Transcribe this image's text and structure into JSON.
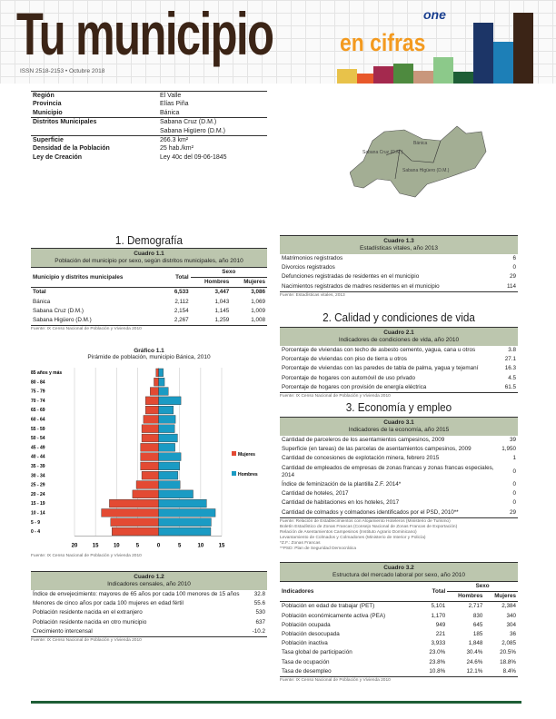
{
  "header": {
    "title": "Tu municipio",
    "subtitle": "en cifras",
    "issn": "ISSN 2518-2153 • Octubre 2018",
    "logo": "one",
    "bar_colors": [
      "#e8c24a",
      "#e8582a",
      "#a4294e",
      "#4e8a3f",
      "#c9977c",
      "#8cc98a",
      "#1e5e36",
      "#1c3567",
      "#1d7fb7",
      "#3b2416"
    ]
  },
  "info": [
    {
      "label": "Región",
      "value": "El Valle"
    },
    {
      "label": "Provincia",
      "value": "Elías Piña"
    },
    {
      "label": "Municipio",
      "value": "Bánica"
    },
    {
      "label": "Distritos Municipales",
      "value": "Sabana Cruz (D.M.)"
    },
    {
      "label": "",
      "value": "Sabana Higüero (D.M.)"
    },
    {
      "label": "Superficie",
      "value": "266.3 km²"
    },
    {
      "label": "Densidad de la Población",
      "value": "25 hab./km²"
    },
    {
      "label": "Ley de Creación",
      "value": "Ley 40c del 09-06-1845"
    }
  ],
  "map": {
    "labels": [
      "Bánica",
      "Sabana Cruz (D.M.)",
      "Sabana Higüero (D.M.)"
    ],
    "fill": "#a3ae94"
  },
  "sections": {
    "s1": "1. Demografía",
    "s2": "2. Calidad y condiciones de vida",
    "s3": "3. Economía y empleo"
  },
  "c11": {
    "num": "Cuadro 1.1",
    "title": "Población del municipio por sexo, según distritos municipales, año 2010",
    "headers": [
      "Municipio y distritos municipales",
      "Total",
      "Sexo",
      "Hombres",
      "Mujeres"
    ],
    "rows": [
      [
        "Total",
        "6,533",
        "3,447",
        "3,086"
      ],
      [
        "Bánica",
        "2,112",
        "1,043",
        "1,069"
      ],
      [
        "Sabana Cruz (D.M.)",
        "2,154",
        "1,145",
        "1,009"
      ],
      [
        "Sabana Higüero (D.M.)",
        "2,267",
        "1,259",
        "1,008"
      ]
    ],
    "source": "Fuente: IX Censo Nacional de Población y Vivienda 2010"
  },
  "chart_data": {
    "type": "bar",
    "orientation": "horizontal-pyramid",
    "number": "Gráfico 1.1",
    "title": "Pirámide de población, municipio Bánica, 2010",
    "categories": [
      "85 años y más",
      "80 - 84",
      "75 - 79",
      "70 - 74",
      "65 - 69",
      "60 - 64",
      "55 - 59",
      "50 - 54",
      "45 - 49",
      "40 - 44",
      "35 - 39",
      "30 - 34",
      "25 - 29",
      "20 - 24",
      "15 - 19",
      "10 - 14",
      "5 - 9",
      "0 - 4"
    ],
    "series": [
      {
        "name": "Mujeres",
        "color": "#e34a33",
        "values": [
          0.6,
          1.1,
          2.0,
          3.1,
          3.1,
          3.6,
          4.0,
          4.0,
          4.3,
          4.3,
          4.3,
          4.0,
          5.3,
          6.2,
          11.7,
          13.6,
          11.4,
          11.1
        ]
      },
      {
        "name": "Hombres",
        "color": "#1a9bc4",
        "values": [
          1.1,
          1.4,
          2.3,
          5.3,
          3.5,
          4.0,
          3.8,
          4.5,
          3.9,
          5.3,
          5.0,
          4.6,
          5.1,
          8.2,
          11.4,
          13.5,
          12.5,
          12.4
        ]
      }
    ],
    "xticks": [
      "20",
      "15",
      "10",
      "5",
      "0",
      "5",
      "10",
      "15"
    ],
    "xlim": [
      -20,
      15
    ],
    "grid": true,
    "legend": "right",
    "source": "Fuente: IX Censo Nacional de Población y Vivienda 2010"
  },
  "c12": {
    "num": "Cuadro 1.2",
    "title": "Indicadores censales, año 2010",
    "rows": [
      [
        "Índice de envejecimiento: mayores de 65 años por cada 100 menores de 15 años",
        "32.8"
      ],
      [
        "Menores de cinco años por cada 100 mujeres en edad fértil",
        "55.6"
      ],
      [
        "Población residente nacida en el extranjero",
        "530"
      ],
      [
        "Población residente nacida en otro municipio",
        "637"
      ],
      [
        "Crecimiento intercensal",
        "-10.2"
      ]
    ],
    "source": "Fuente: IX Censo Nacional de Población y Vivienda 2010"
  },
  "c13": {
    "num": "Cuadro 1.3",
    "title": "Estadísticas vitales, año 2013",
    "rows": [
      [
        "Matrimonios registrados",
        "6"
      ],
      [
        "Divorcios registrados",
        "0"
      ],
      [
        "Defunciones registradas de residentes en el municipio",
        "29"
      ],
      [
        "Nacimientos registrados de madres residentes en el municipio",
        "114"
      ]
    ],
    "source": "Fuente: Estadísticas vitales, 2013"
  },
  "c21": {
    "num": "Cuadro 2.1",
    "title": "Indicadores de condiciones de vida, año 2010",
    "rows": [
      [
        "Porcentaje de viviendas con techo de asbesto cemento, yagua, cana u otros",
        "3.8"
      ],
      [
        "Porcentaje de viviendas con piso de tierra u otros",
        "27.1"
      ],
      [
        "Porcentaje de viviendas con las paredes de tabla de palma, yagua y tejemaní",
        "16.3"
      ],
      [
        "Porcentaje de hogares con automóvil de uso privado",
        "4.5"
      ],
      [
        "Porcentaje de hogares con provisión de energía eléctrica",
        "61.5"
      ]
    ],
    "source": "Fuente: IX Censo Nacional de Población y Vivienda 2010"
  },
  "c31": {
    "num": "Cuadro 3.1",
    "title": "Indicadores de la economía, año 2015",
    "rows": [
      [
        "Cantidad de parceleros de los asentamientos campesinos, 2009",
        "39"
      ],
      [
        "Superficie (en tareas) de las parcelas de asentamientos campesinos, 2009",
        "1,950"
      ],
      [
        "Cantidad de concesiones de explotación minera, febrero 2015",
        "1"
      ],
      [
        "Cantidad de empleados de empresas de zonas francas y zonas francas especiales, 2014",
        "0"
      ],
      [
        "Índice de feminización de la plantilla Z.F. 2014*",
        "0"
      ],
      [
        "Cantidad de hoteles, 2017",
        "0"
      ],
      [
        "Cantidad de habitaciones en los hoteles, 2017",
        "0"
      ],
      [
        "Cantidad de colmados y colmadones identificados por el PSD, 2010**",
        "29"
      ]
    ],
    "notes": [
      "Fuente: Relación de Establecimientos con Alojamiento Hoteleros (Ministerio de Turismo)",
      "Boletín Estadístico de Zonas Francas (Consejo Nacional de Zonas Francas de Exportación)",
      "Relación de Asentamientos Campesinos (Instituto Agrario Dominicano)",
      "Levantamiento de Colmados y Colmadones (Ministerio de Interior y Policía)",
      "*Z.F.: Zonas Francas",
      "**PSD: Plan de Seguridad Democrática"
    ]
  },
  "c32": {
    "num": "Cuadro 3.2",
    "title": "Estructura del mercado laboral por sexo, año 2010",
    "headers": [
      "Indicadores",
      "Total",
      "Sexo",
      "Hombres",
      "Mujeres"
    ],
    "rows": [
      [
        "Población en edad de trabajar (PET)",
        "5,101",
        "2,717",
        "2,384"
      ],
      [
        "Población económicamente activa (PEA)",
        "1,170",
        "830",
        "340"
      ],
      [
        "Población ocupada",
        "949",
        "645",
        "304"
      ],
      [
        "Población desocupada",
        "221",
        "185",
        "36"
      ],
      [
        "Población inactiva",
        "3,933",
        "1,848",
        "2,085"
      ],
      [
        "Tasa global de participación",
        "23.0%",
        "30.4%",
        "20.5%"
      ],
      [
        "Tasa de ocupación",
        "23.8%",
        "24.6%",
        "18.8%"
      ],
      [
        "Tasa de desempleo",
        "10.8%",
        "12.1%",
        "8.4%"
      ]
    ],
    "source": "Fuente: IX Censo Nacional de Población y Vivienda 2010"
  }
}
